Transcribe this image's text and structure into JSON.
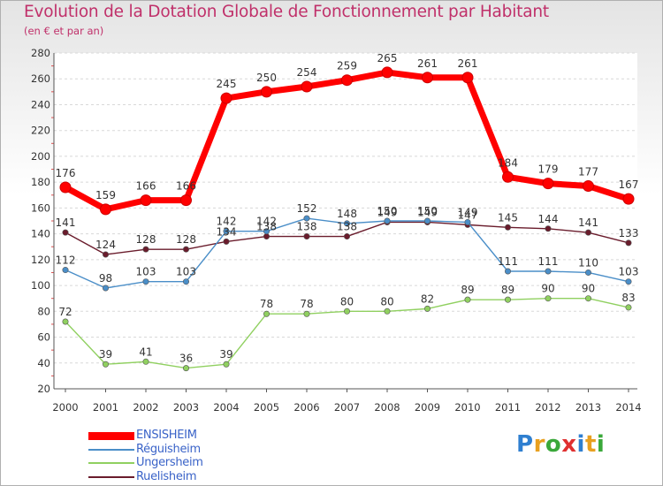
{
  "title": "Evolution de la Dotation Globale de Fonctionnement par Habitant",
  "subtitle": "(en € et par an)",
  "logo": "Proxiti",
  "chart_data": {
    "type": "line",
    "title": "Evolution de la Dotation Globale de Fonctionnement par Habitant",
    "subtitle": "(en € et par an)",
    "x": [
      "2000",
      "2001",
      "2002",
      "2003",
      "2004",
      "2005",
      "2006",
      "2007",
      "2008",
      "2009",
      "2010",
      "2011",
      "2012",
      "2013",
      "2014"
    ],
    "ylim": [
      20,
      280
    ],
    "yticks": [
      20,
      40,
      60,
      80,
      100,
      120,
      140,
      160,
      180,
      200,
      220,
      240,
      260,
      280
    ],
    "grid": "horizontal",
    "legend_position": "bottom-left",
    "series": [
      {
        "name": "ENSISHEIM",
        "color": "#ff0000",
        "values": [
          176,
          159,
          166,
          166,
          245,
          250,
          254,
          259,
          265,
          261,
          261,
          184,
          179,
          177,
          167
        ]
      },
      {
        "name": "Réguisheim",
        "color": "#4a8ec8",
        "values": [
          112,
          98,
          103,
          103,
          142,
          142,
          152,
          148,
          150,
          150,
          149,
          111,
          111,
          110,
          103
        ]
      },
      {
        "name": "Ungersheim",
        "color": "#90d060",
        "values": [
          72,
          39,
          41,
          36,
          39,
          78,
          78,
          80,
          80,
          82,
          89,
          89,
          90,
          90,
          83
        ]
      },
      {
        "name": "Ruelisheim",
        "color": "#6a1c2c",
        "values": [
          141,
          124,
          128,
          128,
          134,
          138,
          138,
          138,
          149,
          149,
          147,
          145,
          144,
          141,
          133
        ]
      }
    ],
    "label_display": {
      "ENSISHEIM": [
        "176",
        "159",
        "166",
        "166",
        "245",
        "250",
        "254",
        "259",
        "265",
        "261",
        "261",
        "184",
        "179",
        "177",
        "167"
      ],
      "Réguisheim": [
        "112",
        "98",
        "103",
        "103",
        "142",
        "142",
        "152",
        "148",
        "150",
        "150",
        "149",
        "111",
        "111",
        "110",
        "103"
      ],
      "Ungersheim": [
        "72",
        "39",
        "41",
        "36",
        "39",
        "78",
        "78",
        "80",
        "80",
        "82",
        "89",
        "89",
        "90",
        "90",
        "83"
      ],
      "Ruelisheim": [
        "141",
        "124",
        "128",
        "128",
        "134",
        "138",
        "138",
        "138",
        "149",
        "149",
        "147",
        "145",
        "144",
        "141",
        "133"
      ]
    }
  }
}
